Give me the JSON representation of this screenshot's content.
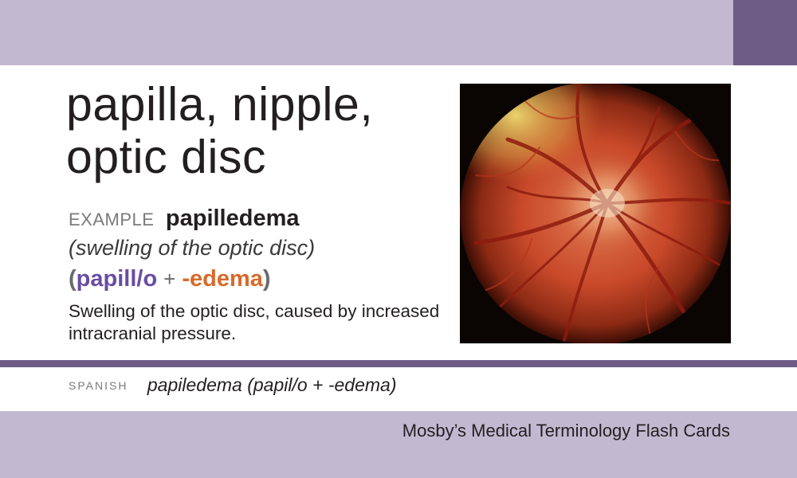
{
  "card": {
    "definition_lines": [
      "papilla, nipple,",
      "optic disc"
    ],
    "example_label": "EXAMPLE",
    "example_term": "papilledema",
    "example_meaning": "(swelling of the optic disc)",
    "breakdown": {
      "open_paren": "(",
      "root": "papill/o",
      "plus": "+",
      "suffix": "-edema",
      "close_paren": ")"
    },
    "description": "Swelling of the optic disc, caused by increased intracranial pressure.",
    "spanish_label": "SPANISH",
    "spanish_term": "papiledema (papil/o + -edema)",
    "brand": "Mosby’s Medical Terminology Flash Cards"
  },
  "colors": {
    "band_light": "#c2b9d1",
    "band_dark": "#6e5c87",
    "root_purple": "#6a4ca3",
    "suffix_orange": "#d86a2b"
  }
}
